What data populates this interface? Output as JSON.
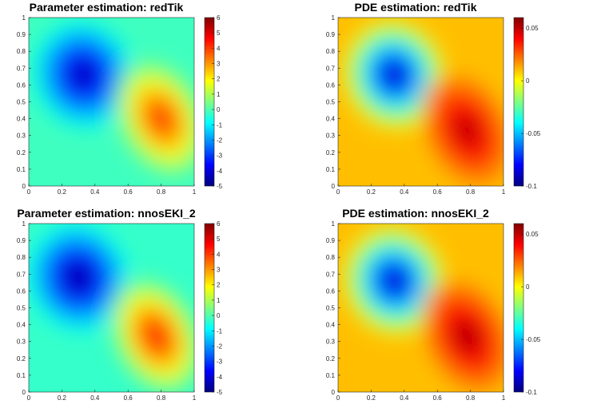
{
  "chart_data": [
    {
      "type": "heatmap",
      "title": "Parameter estimation: redTik",
      "xlabel": "",
      "ylabel": "",
      "xlim": [
        0,
        1
      ],
      "ylim": [
        0,
        1
      ],
      "xticks": [
        "0",
        "0.2",
        "0.4",
        "0.6",
        "0.8",
        "1"
      ],
      "yticks": [
        "0",
        "0.1",
        "0.2",
        "0.3",
        "0.4",
        "0.5",
        "0.6",
        "0.7",
        "0.8",
        "0.9",
        "1"
      ],
      "clim": [
        -5,
        6
      ],
      "colorbar_ticks": [
        "-5",
        "-4",
        "-3",
        "-2",
        "-1",
        "0",
        "1",
        "2",
        "3",
        "4",
        "5",
        "6"
      ],
      "colormap": "jet",
      "background_value": -0.2,
      "features": [
        {
          "kind": "min",
          "x": 0.33,
          "y": 0.66,
          "value": -4.6
        },
        {
          "kind": "max",
          "x": 0.8,
          "y": 0.4,
          "value": 4.3
        }
      ]
    },
    {
      "type": "heatmap",
      "title": "PDE estimation: redTik",
      "xlabel": "",
      "ylabel": "",
      "xlim": [
        0,
        1
      ],
      "ylim": [
        0,
        1
      ],
      "xticks": [
        "0",
        "0.2",
        "0.4",
        "0.6",
        "0.8",
        "1"
      ],
      "yticks": [
        "0",
        "0.1",
        "0.2",
        "0.3",
        "0.4",
        "0.5",
        "0.6",
        "0.7",
        "0.8",
        "0.9",
        "1"
      ],
      "clim": [
        -0.1,
        0.06
      ],
      "colorbar_ticks": [
        "-0.1",
        "-0.05",
        "0",
        "0.05"
      ],
      "colormap": "jet",
      "background_value": 0.01,
      "features": [
        {
          "kind": "min",
          "x": 0.34,
          "y": 0.66,
          "value": -0.092
        },
        {
          "kind": "max",
          "x": 0.78,
          "y": 0.33,
          "value": 0.052
        }
      ]
    },
    {
      "type": "heatmap",
      "title": "Parameter estimation: nnosEKI_2",
      "xlabel": "",
      "ylabel": "",
      "xlim": [
        0,
        1
      ],
      "ylim": [
        0,
        1
      ],
      "xticks": [
        "0",
        "0.2",
        "0.4",
        "0.6",
        "0.8",
        "1"
      ],
      "yticks": [
        "0",
        "0.1",
        "0.2",
        "0.3",
        "0.4",
        "0.5",
        "0.6",
        "0.7",
        "0.8",
        "0.9",
        "1"
      ],
      "clim": [
        -5,
        6
      ],
      "colorbar_ticks": [
        "-5",
        "-4",
        "-3",
        "-2",
        "-1",
        "0",
        "1",
        "2",
        "3",
        "4",
        "5",
        "6"
      ],
      "colormap": "jet",
      "background_value": -0.3,
      "features": [
        {
          "kind": "min",
          "x": 0.3,
          "y": 0.68,
          "value": -4.8
        },
        {
          "kind": "max",
          "x": 0.77,
          "y": 0.33,
          "value": 4.6
        }
      ]
    },
    {
      "type": "heatmap",
      "title": "PDE estimation: nnosEKI_2",
      "xlabel": "",
      "ylabel": "",
      "xlim": [
        0,
        1
      ],
      "ylim": [
        0,
        1
      ],
      "xticks": [
        "0",
        "0.2",
        "0.4",
        "0.6",
        "0.8",
        "1"
      ],
      "yticks": [
        "0",
        "0.1",
        "0.2",
        "0.3",
        "0.4",
        "0.5",
        "0.6",
        "0.7",
        "0.8",
        "0.9",
        "1"
      ],
      "clim": [
        -0.1,
        0.06
      ],
      "colorbar_ticks": [
        "-0.1",
        "-0.05",
        "0",
        "0.05"
      ],
      "colormap": "jet",
      "background_value": 0.01,
      "features": [
        {
          "kind": "min",
          "x": 0.34,
          "y": 0.66,
          "value": -0.092
        },
        {
          "kind": "max",
          "x": 0.78,
          "y": 0.33,
          "value": 0.054
        }
      ]
    }
  ]
}
